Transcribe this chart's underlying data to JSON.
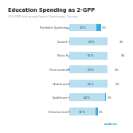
{
  "title": "Education Spending as 2-GPP",
  "subtitle": "10% GPP fold among Spoiss Developing, Country.",
  "categories": [
    "Pondable Spaitning",
    "Souatd",
    "Elicia H",
    "From bsoted",
    "Healthcare",
    "Spalthcare",
    "Infrastructure"
  ],
  "bar1_values": [
    32,
    53,
    51,
    50,
    51,
    42,
    31
  ],
  "bar2_values": [
    5,
    4,
    8,
    2,
    2,
    1,
    2
  ],
  "bar1_color": "#b8dff0",
  "bar2_color": "#3aabdf",
  "dot_colors": [
    "#4ab0e0",
    "#e07060",
    "#4a90d0",
    "#3a3a8a",
    "#e02020",
    "#d4a030",
    "#e04040"
  ],
  "text_color": "#444444",
  "subtitle_color": "#999999",
  "background_color": "#ffffff",
  "bar_height": 0.55,
  "title_fontsize": 4.8,
  "subtitle_fontsize": 2.5,
  "label_fontsize": 2.6,
  "pct_fontsize": 2.8,
  "footer": "redens",
  "footer_color": "#2196c4"
}
